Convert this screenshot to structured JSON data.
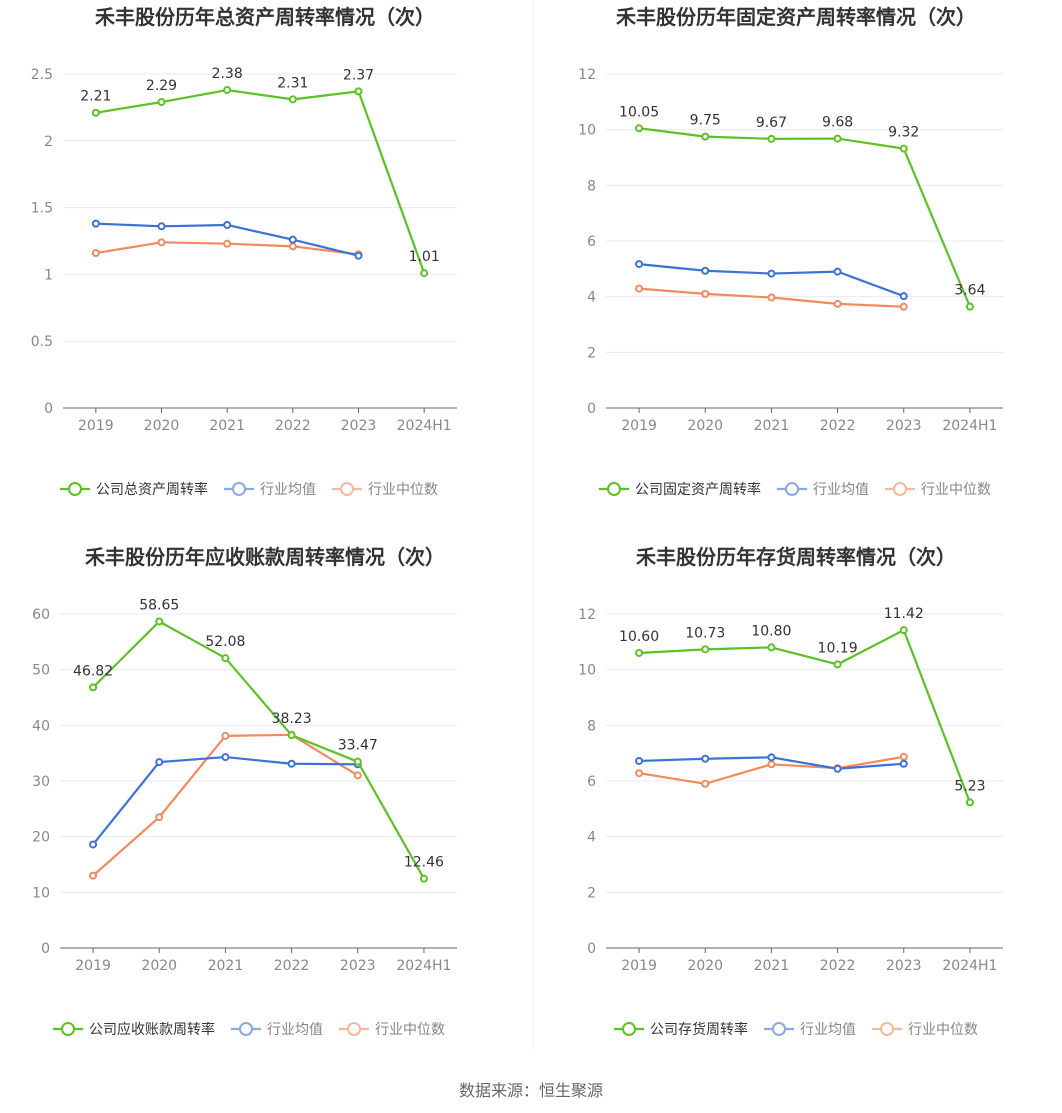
{
  "source_text": "数据来源：恒生聚源",
  "colors": {
    "company": "#5cc224",
    "avg": "#3a72d8",
    "median": "#f28a5c",
    "grid": "#e6e9f0",
    "axis": "#666666",
    "title": "#333333"
  },
  "chart_data": [
    {
      "type": "line",
      "title": "禾丰股份历年总资产周转率情况（次）",
      "categories": [
        "2019",
        "2020",
        "2021",
        "2022",
        "2023",
        "2024H1"
      ],
      "ylim": [
        0,
        2.5
      ],
      "yticks": [
        0,
        0.5,
        1,
        1.5,
        2,
        2.5
      ],
      "ytick_labels": [
        "0",
        "0.5",
        "1",
        "1.5",
        "2",
        "2.5"
      ],
      "legend_position": "bottom-center",
      "series": [
        {
          "name": "公司总资产周转率",
          "role": "company",
          "values": [
            2.21,
            2.29,
            2.38,
            2.31,
            2.37,
            1.01
          ],
          "labels": [
            "2.21",
            "2.29",
            "2.38",
            "2.31",
            "2.37",
            "1.01"
          ]
        },
        {
          "name": "行业均值",
          "role": "avg",
          "values": [
            1.38,
            1.36,
            1.37,
            1.26,
            1.14,
            null
          ]
        },
        {
          "name": "行业中位数",
          "role": "median",
          "values": [
            1.16,
            1.24,
            1.23,
            1.21,
            1.15,
            null
          ]
        }
      ]
    },
    {
      "type": "line",
      "title": "禾丰股份历年固定资产周转率情况（次）",
      "categories": [
        "2019",
        "2020",
        "2021",
        "2022",
        "2023",
        "2024H1"
      ],
      "ylim": [
        0,
        12
      ],
      "yticks": [
        0,
        2,
        4,
        6,
        8,
        10,
        12
      ],
      "ytick_labels": [
        "0",
        "2",
        "4",
        "6",
        "8",
        "10",
        "12"
      ],
      "legend_position": "bottom-center",
      "series": [
        {
          "name": "公司固定资产周转率",
          "role": "company",
          "values": [
            10.05,
            9.75,
            9.67,
            9.68,
            9.32,
            3.64
          ],
          "labels": [
            "10.05",
            "9.75",
            "9.67",
            "9.68",
            "9.32",
            "3.64"
          ]
        },
        {
          "name": "行业均值",
          "role": "avg",
          "values": [
            5.17,
            4.93,
            4.83,
            4.9,
            4.02,
            null
          ]
        },
        {
          "name": "行业中位数",
          "role": "median",
          "values": [
            4.29,
            4.1,
            3.97,
            3.74,
            3.64,
            null
          ]
        }
      ]
    },
    {
      "type": "line",
      "title": "禾丰股份历年应收账款周转率情况（次）",
      "categories": [
        "2019",
        "2020",
        "2021",
        "2022",
        "2023",
        "2024H1"
      ],
      "ylim": [
        0,
        60
      ],
      "yticks": [
        0,
        10,
        20,
        30,
        40,
        50,
        60
      ],
      "ytick_labels": [
        "0",
        "10",
        "20",
        "30",
        "40",
        "50",
        "60"
      ],
      "legend_position": "bottom-center",
      "series": [
        {
          "name": "公司应收账款周转率",
          "role": "company",
          "values": [
            46.82,
            58.65,
            52.08,
            38.23,
            33.47,
            12.46
          ],
          "labels": [
            "46.82",
            "58.65",
            "52.08",
            "38.23",
            "33.47",
            "12.46"
          ]
        },
        {
          "name": "行业均值",
          "role": "avg",
          "values": [
            18.6,
            33.4,
            34.3,
            33.1,
            33.0,
            null
          ]
        },
        {
          "name": "行业中位数",
          "role": "median",
          "values": [
            13.0,
            23.5,
            38.1,
            38.3,
            31.0,
            null
          ]
        }
      ]
    },
    {
      "type": "line",
      "title": "禾丰股份历年存货周转率情况（次）",
      "categories": [
        "2019",
        "2020",
        "2021",
        "2022",
        "2023",
        "2024H1"
      ],
      "ylim": [
        0,
        12
      ],
      "yticks": [
        0,
        2,
        4,
        6,
        8,
        10,
        12
      ],
      "ytick_labels": [
        "0",
        "2",
        "4",
        "6",
        "8",
        "10",
        "12"
      ],
      "legend_position": "bottom-center",
      "series": [
        {
          "name": "公司存货周转率",
          "role": "company",
          "values": [
            10.6,
            10.73,
            10.8,
            10.19,
            11.42,
            5.23
          ],
          "labels": [
            "10.60",
            "10.73",
            "10.80",
            "10.19",
            "11.42",
            "5.23"
          ]
        },
        {
          "name": "行业均值",
          "role": "avg",
          "values": [
            6.72,
            6.8,
            6.85,
            6.44,
            6.62,
            null
          ]
        },
        {
          "name": "行业中位数",
          "role": "median",
          "values": [
            6.28,
            5.9,
            6.6,
            6.46,
            6.87,
            null
          ]
        }
      ]
    }
  ]
}
